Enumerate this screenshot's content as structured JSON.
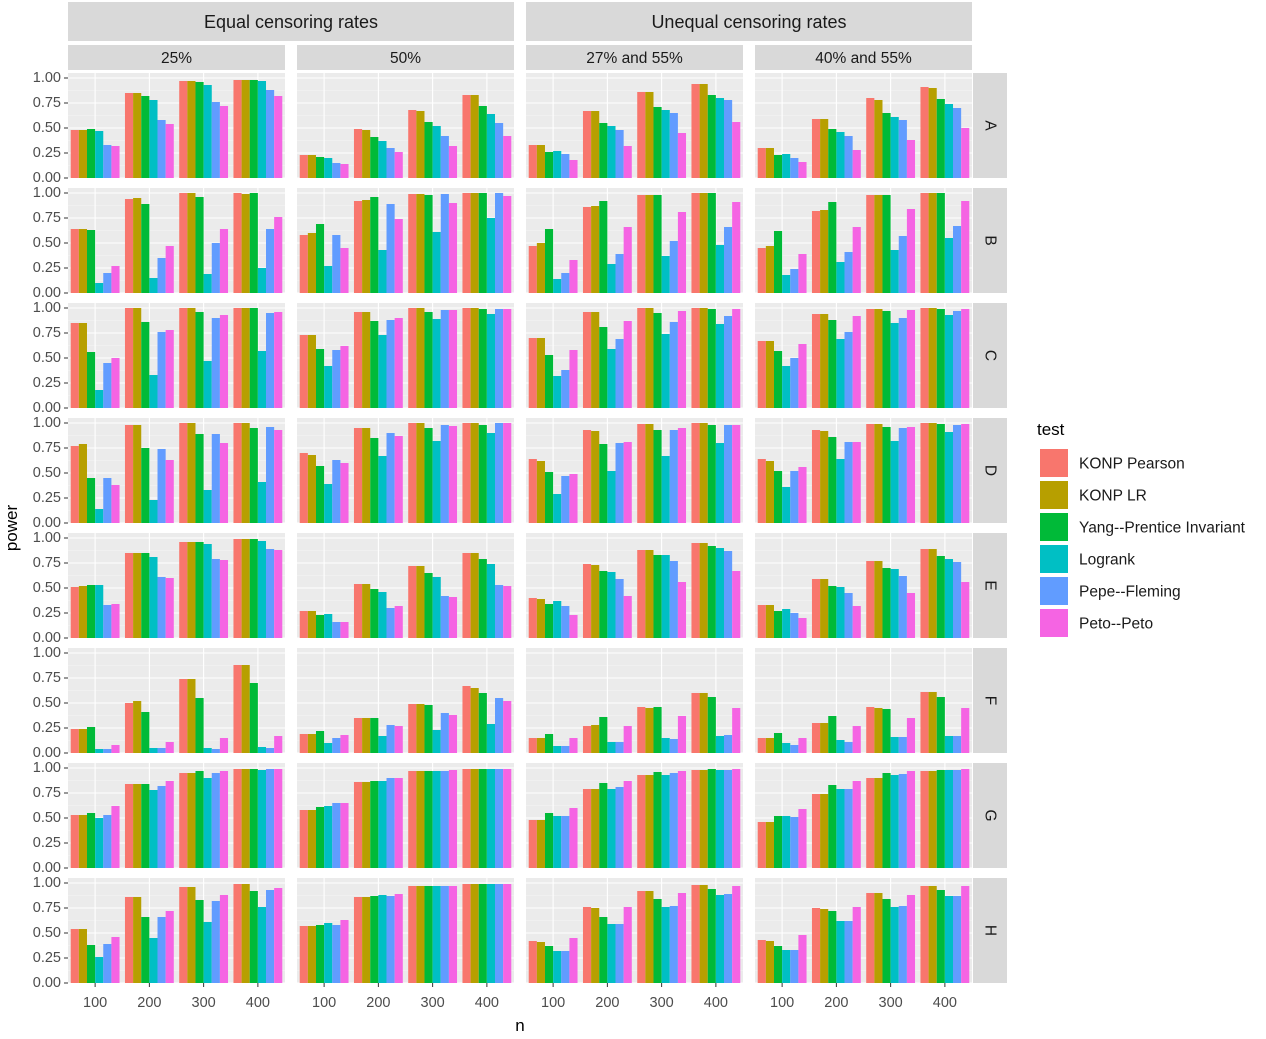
{
  "chart_data": {
    "type": "bar",
    "title": "",
    "xlabel": "n",
    "ylabel": "power",
    "ylim": [
      0,
      1.05
    ],
    "y_ticks": [
      "0.00",
      "0.25",
      "0.50",
      "0.75",
      "1.00"
    ],
    "categories": [
      "100",
      "200",
      "300",
      "400"
    ],
    "top_groups": [
      {
        "label": "Equal censoring rates"
      },
      {
        "label": "Unequal censoring rates"
      }
    ],
    "columns": [
      "25%",
      "50%",
      "27% and 55%",
      "40% and 55%"
    ],
    "rows": [
      "A",
      "B",
      "C",
      "D",
      "E",
      "F",
      "G",
      "H"
    ],
    "legend": {
      "title": "test",
      "entries": [
        {
          "name": "KONP Pearson",
          "color": "#F8766D"
        },
        {
          "name": "KONP LR",
          "color": "#B79F00"
        },
        {
          "name": "Yang--Prentice Invariant",
          "color": "#00BA38"
        },
        {
          "name": "Logrank",
          "color": "#00BFC4"
        },
        {
          "name": "Pepe--Fleming",
          "color": "#619CFF"
        },
        {
          "name": "Peto--Peto",
          "color": "#F564E3"
        }
      ]
    },
    "values": {
      "A": {
        "25%": [
          [
            0.48,
            0.48,
            0.49,
            0.47,
            0.33,
            0.32
          ],
          [
            0.85,
            0.85,
            0.82,
            0.78,
            0.58,
            0.54
          ],
          [
            0.97,
            0.97,
            0.96,
            0.93,
            0.76,
            0.72
          ],
          [
            0.98,
            0.98,
            0.98,
            0.97,
            0.88,
            0.82
          ]
        ],
        "50%": [
          [
            0.23,
            0.23,
            0.21,
            0.2,
            0.15,
            0.14
          ],
          [
            0.49,
            0.48,
            0.41,
            0.37,
            0.3,
            0.26
          ],
          [
            0.68,
            0.67,
            0.56,
            0.52,
            0.42,
            0.32
          ],
          [
            0.83,
            0.83,
            0.72,
            0.64,
            0.55,
            0.42
          ]
        ],
        "27% and 55%": [
          [
            0.33,
            0.33,
            0.26,
            0.27,
            0.24,
            0.18
          ],
          [
            0.67,
            0.67,
            0.55,
            0.52,
            0.48,
            0.32
          ],
          [
            0.86,
            0.86,
            0.71,
            0.68,
            0.65,
            0.45
          ],
          [
            0.94,
            0.94,
            0.83,
            0.8,
            0.78,
            0.56
          ]
        ],
        "40% and 55%": [
          [
            0.3,
            0.3,
            0.23,
            0.24,
            0.2,
            0.16
          ],
          [
            0.59,
            0.59,
            0.49,
            0.46,
            0.42,
            0.28
          ],
          [
            0.8,
            0.78,
            0.65,
            0.61,
            0.58,
            0.38
          ],
          [
            0.91,
            0.9,
            0.79,
            0.74,
            0.7,
            0.5
          ]
        ]
      },
      "B": {
        "25%": [
          [
            0.64,
            0.64,
            0.63,
            0.1,
            0.2,
            0.27
          ],
          [
            0.94,
            0.95,
            0.89,
            0.15,
            0.35,
            0.47
          ],
          [
            1.0,
            1.0,
            0.96,
            0.19,
            0.5,
            0.64
          ],
          [
            1.0,
            0.99,
            1.0,
            0.25,
            0.64,
            0.76
          ]
        ],
        "50%": [
          [
            0.58,
            0.6,
            0.69,
            0.27,
            0.58,
            0.45
          ],
          [
            0.92,
            0.93,
            0.96,
            0.43,
            0.89,
            0.74
          ],
          [
            0.99,
            0.99,
            0.98,
            0.61,
            0.99,
            0.9
          ],
          [
            1.0,
            1.0,
            1.0,
            0.75,
            1.0,
            0.97
          ]
        ],
        "27% and 55%": [
          [
            0.47,
            0.5,
            0.64,
            0.14,
            0.2,
            0.33
          ],
          [
            0.86,
            0.87,
            0.92,
            0.29,
            0.39,
            0.66
          ],
          [
            0.98,
            0.98,
            0.98,
            0.37,
            0.52,
            0.81
          ],
          [
            1.0,
            1.0,
            1.0,
            0.48,
            0.66,
            0.91
          ]
        ],
        "40% and 55%": [
          [
            0.45,
            0.47,
            0.62,
            0.18,
            0.24,
            0.39
          ],
          [
            0.82,
            0.83,
            0.91,
            0.31,
            0.41,
            0.66
          ],
          [
            0.98,
            0.98,
            0.98,
            0.43,
            0.57,
            0.84
          ],
          [
            1.0,
            1.0,
            1.0,
            0.55,
            0.67,
            0.92
          ]
        ]
      },
      "C": {
        "25%": [
          [
            0.85,
            0.85,
            0.56,
            0.18,
            0.45,
            0.5
          ],
          [
            1.0,
            1.0,
            0.86,
            0.33,
            0.76,
            0.78
          ],
          [
            1.0,
            1.0,
            0.96,
            0.47,
            0.9,
            0.93
          ],
          [
            1.0,
            1.0,
            1.0,
            0.57,
            0.95,
            0.96
          ]
        ],
        "50%": [
          [
            0.73,
            0.73,
            0.59,
            0.42,
            0.58,
            0.62
          ],
          [
            0.96,
            0.96,
            0.87,
            0.73,
            0.88,
            0.9
          ],
          [
            1.0,
            1.0,
            0.96,
            0.89,
            0.98,
            0.98
          ],
          [
            1.0,
            1.0,
            0.99,
            0.94,
            0.99,
            0.99
          ]
        ],
        "27% and 55%": [
          [
            0.7,
            0.7,
            0.53,
            0.32,
            0.38,
            0.58
          ],
          [
            0.96,
            0.96,
            0.81,
            0.59,
            0.69,
            0.87
          ],
          [
            1.0,
            1.0,
            0.95,
            0.74,
            0.86,
            0.97
          ],
          [
            1.0,
            1.0,
            0.99,
            0.84,
            0.92,
            0.99
          ]
        ],
        "40% and 55%": [
          [
            0.67,
            0.67,
            0.57,
            0.42,
            0.5,
            0.64
          ],
          [
            0.94,
            0.94,
            0.88,
            0.69,
            0.76,
            0.92
          ],
          [
            0.99,
            0.99,
            0.97,
            0.85,
            0.9,
            0.98
          ],
          [
            1.0,
            1.0,
            0.99,
            0.93,
            0.97,
            0.99
          ]
        ]
      },
      "D": {
        "25%": [
          [
            0.77,
            0.79,
            0.45,
            0.14,
            0.45,
            0.38
          ],
          [
            0.98,
            0.98,
            0.75,
            0.23,
            0.74,
            0.63
          ],
          [
            1.0,
            1.0,
            0.89,
            0.33,
            0.89,
            0.8
          ],
          [
            1.0,
            1.0,
            0.95,
            0.41,
            0.96,
            0.93
          ]
        ],
        "50%": [
          [
            0.7,
            0.68,
            0.57,
            0.39,
            0.63,
            0.6
          ],
          [
            0.95,
            0.95,
            0.85,
            0.67,
            0.9,
            0.87
          ],
          [
            1.0,
            1.0,
            0.95,
            0.82,
            0.98,
            0.97
          ],
          [
            1.0,
            1.0,
            0.98,
            0.9,
            1.0,
            1.0
          ]
        ],
        "27% and 55%": [
          [
            0.64,
            0.62,
            0.51,
            0.29,
            0.47,
            0.49
          ],
          [
            0.93,
            0.92,
            0.79,
            0.52,
            0.8,
            0.81
          ],
          [
            0.99,
            0.99,
            0.93,
            0.67,
            0.93,
            0.95
          ],
          [
            1.0,
            1.0,
            0.98,
            0.8,
            0.98,
            0.98
          ]
        ],
        "40% and 55%": [
          [
            0.64,
            0.62,
            0.52,
            0.36,
            0.52,
            0.56
          ],
          [
            0.93,
            0.92,
            0.86,
            0.64,
            0.81,
            0.81
          ],
          [
            0.99,
            0.99,
            0.96,
            0.82,
            0.95,
            0.96
          ],
          [
            1.0,
            1.0,
            0.99,
            0.91,
            0.98,
            0.99
          ]
        ]
      },
      "E": {
        "25%": [
          [
            0.51,
            0.52,
            0.53,
            0.53,
            0.33,
            0.34
          ],
          [
            0.85,
            0.85,
            0.85,
            0.81,
            0.61,
            0.6
          ],
          [
            0.96,
            0.96,
            0.96,
            0.94,
            0.79,
            0.78
          ],
          [
            0.99,
            0.99,
            0.99,
            0.97,
            0.89,
            0.88
          ]
        ],
        "50%": [
          [
            0.27,
            0.27,
            0.23,
            0.24,
            0.16,
            0.16
          ],
          [
            0.54,
            0.54,
            0.49,
            0.46,
            0.3,
            0.32
          ],
          [
            0.72,
            0.72,
            0.65,
            0.61,
            0.42,
            0.41
          ],
          [
            0.85,
            0.85,
            0.79,
            0.74,
            0.53,
            0.52
          ]
        ],
        "27% and 55%": [
          [
            0.4,
            0.39,
            0.34,
            0.37,
            0.32,
            0.23
          ],
          [
            0.74,
            0.73,
            0.67,
            0.66,
            0.59,
            0.42
          ],
          [
            0.88,
            0.88,
            0.83,
            0.83,
            0.77,
            0.56
          ],
          [
            0.95,
            0.95,
            0.92,
            0.9,
            0.87,
            0.67
          ]
        ],
        "40% and 55%": [
          [
            0.33,
            0.33,
            0.27,
            0.29,
            0.25,
            0.2
          ],
          [
            0.59,
            0.59,
            0.52,
            0.51,
            0.45,
            0.32
          ],
          [
            0.77,
            0.77,
            0.7,
            0.69,
            0.62,
            0.45
          ],
          [
            0.89,
            0.89,
            0.82,
            0.79,
            0.76,
            0.56
          ]
        ]
      },
      "F": {
        "25%": [
          [
            0.24,
            0.24,
            0.26,
            0.04,
            0.04,
            0.08
          ],
          [
            0.5,
            0.52,
            0.41,
            0.05,
            0.05,
            0.11
          ],
          [
            0.74,
            0.74,
            0.55,
            0.05,
            0.04,
            0.15
          ],
          [
            0.88,
            0.88,
            0.7,
            0.06,
            0.05,
            0.17
          ]
        ],
        "50%": [
          [
            0.19,
            0.19,
            0.22,
            0.1,
            0.15,
            0.18
          ],
          [
            0.35,
            0.35,
            0.35,
            0.17,
            0.28,
            0.27
          ],
          [
            0.49,
            0.49,
            0.48,
            0.23,
            0.4,
            0.38
          ],
          [
            0.67,
            0.65,
            0.6,
            0.29,
            0.55,
            0.52
          ]
        ],
        "27% and 55%": [
          [
            0.15,
            0.15,
            0.19,
            0.07,
            0.07,
            0.15
          ],
          [
            0.27,
            0.28,
            0.36,
            0.11,
            0.11,
            0.27
          ],
          [
            0.46,
            0.45,
            0.46,
            0.15,
            0.14,
            0.37
          ],
          [
            0.6,
            0.6,
            0.56,
            0.17,
            0.18,
            0.45
          ]
        ],
        "40% and 55%": [
          [
            0.15,
            0.15,
            0.2,
            0.1,
            0.08,
            0.15
          ],
          [
            0.3,
            0.3,
            0.37,
            0.13,
            0.11,
            0.27
          ],
          [
            0.46,
            0.45,
            0.44,
            0.16,
            0.16,
            0.35
          ],
          [
            0.61,
            0.61,
            0.56,
            0.17,
            0.17,
            0.45
          ]
        ]
      },
      "G": {
        "25%": [
          [
            0.53,
            0.53,
            0.55,
            0.5,
            0.53,
            0.62
          ],
          [
            0.84,
            0.84,
            0.84,
            0.78,
            0.82,
            0.87
          ],
          [
            0.95,
            0.95,
            0.97,
            0.9,
            0.95,
            0.97
          ],
          [
            0.99,
            0.99,
            0.99,
            0.98,
            0.99,
            0.99
          ]
        ],
        "50%": [
          [
            0.58,
            0.58,
            0.61,
            0.62,
            0.65,
            0.65
          ],
          [
            0.86,
            0.86,
            0.87,
            0.87,
            0.9,
            0.9
          ],
          [
            0.97,
            0.97,
            0.97,
            0.97,
            0.97,
            0.98
          ],
          [
            0.99,
            0.99,
            0.99,
            0.99,
            0.99,
            0.99
          ]
        ],
        "27% and 55%": [
          [
            0.48,
            0.48,
            0.55,
            0.52,
            0.52,
            0.6
          ],
          [
            0.79,
            0.79,
            0.85,
            0.79,
            0.81,
            0.87
          ],
          [
            0.93,
            0.93,
            0.96,
            0.93,
            0.95,
            0.97
          ],
          [
            0.98,
            0.98,
            0.99,
            0.98,
            0.98,
            0.99
          ]
        ],
        "40% and 55%": [
          [
            0.46,
            0.46,
            0.52,
            0.52,
            0.51,
            0.59
          ],
          [
            0.74,
            0.74,
            0.83,
            0.79,
            0.79,
            0.87
          ],
          [
            0.9,
            0.9,
            0.95,
            0.93,
            0.94,
            0.97
          ],
          [
            0.97,
            0.97,
            0.98,
            0.98,
            0.98,
            0.99
          ]
        ]
      },
      "H": {
        "25%": [
          [
            0.54,
            0.54,
            0.38,
            0.26,
            0.39,
            0.46
          ],
          [
            0.86,
            0.86,
            0.66,
            0.45,
            0.66,
            0.72
          ],
          [
            0.96,
            0.96,
            0.83,
            0.61,
            0.82,
            0.88
          ],
          [
            0.99,
            0.99,
            0.92,
            0.76,
            0.93,
            0.95
          ]
        ],
        "50%": [
          [
            0.57,
            0.57,
            0.58,
            0.6,
            0.58,
            0.63
          ],
          [
            0.86,
            0.86,
            0.87,
            0.88,
            0.87,
            0.89
          ],
          [
            0.97,
            0.97,
            0.97,
            0.97,
            0.97,
            0.97
          ],
          [
            0.99,
            0.99,
            0.99,
            0.99,
            0.99,
            0.99
          ]
        ],
        "27% and 55%": [
          [
            0.42,
            0.41,
            0.37,
            0.32,
            0.32,
            0.45
          ],
          [
            0.76,
            0.75,
            0.66,
            0.59,
            0.59,
            0.76
          ],
          [
            0.92,
            0.92,
            0.84,
            0.76,
            0.77,
            0.9
          ],
          [
            0.98,
            0.98,
            0.94,
            0.88,
            0.89,
            0.97
          ]
        ],
        "40% and 55%": [
          [
            0.43,
            0.42,
            0.37,
            0.33,
            0.33,
            0.48
          ],
          [
            0.75,
            0.74,
            0.72,
            0.62,
            0.62,
            0.76
          ],
          [
            0.9,
            0.9,
            0.84,
            0.76,
            0.77,
            0.88
          ],
          [
            0.97,
            0.97,
            0.93,
            0.87,
            0.87,
            0.97
          ]
        ]
      }
    }
  }
}
